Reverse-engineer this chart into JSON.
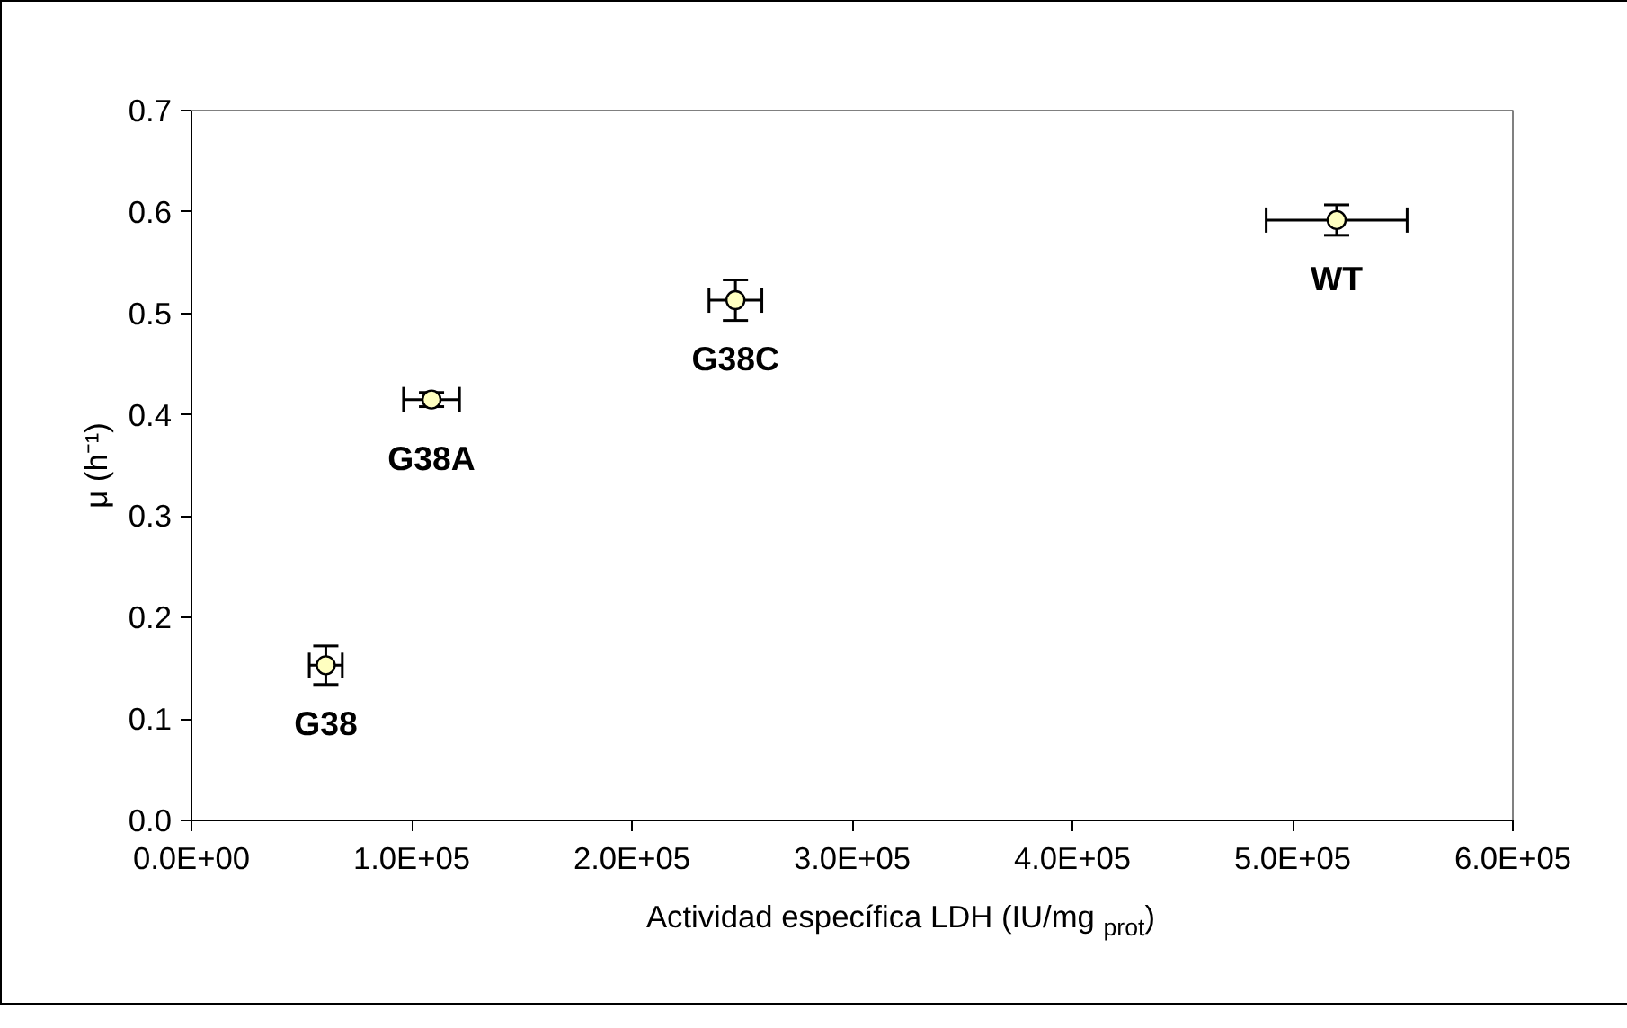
{
  "chart_data": {
    "type": "scatter",
    "xlabel": "Actividad específica LDH (IU/mg $_{prot}$)",
    "ylabel": "μ (h⁻¹)",
    "x": [
      61000,
      109000,
      247000,
      520000
    ],
    "series": [
      {
        "color": "#ffffc0",
        "values": [
          0.153,
          0.415,
          0.513,
          0.592
        ],
        "errors": [
          0.019,
          0.007,
          0.02,
          0.015
        ],
        "xerrors": [
          7500,
          12700,
          12000,
          32000
        ]
      }
    ],
    "annotations": [
      {
        "text": "G38",
        "x": 61000,
        "y": 0.153
      },
      {
        "text": "G38A",
        "x": 109000,
        "y": 0.415
      },
      {
        "text": "G38C",
        "x": 247000,
        "y": 0.513
      },
      {
        "text": "WT",
        "x": 520000,
        "y": 0.592
      }
    ],
    "xlim": [
      0,
      600000
    ],
    "ylim": [
      0,
      0.7
    ],
    "xticks": [
      {
        "value": 0,
        "label": "0.0E+00"
      },
      {
        "value": 100000,
        "label": "1.0E+05"
      },
      {
        "value": 200000,
        "label": "2.0E+05"
      },
      {
        "value": 300000,
        "label": "3.0E+05"
      },
      {
        "value": 400000,
        "label": "4.0E+05"
      },
      {
        "value": 500000,
        "label": "5.0E+05"
      },
      {
        "value": 600000,
        "label": "6.0E+05"
      }
    ],
    "yticks": [
      {
        "value": 0,
        "label": "0.0"
      },
      {
        "value": 0.1,
        "label": "0.1"
      },
      {
        "value": 0.2,
        "label": "0.2"
      },
      {
        "value": 0.3,
        "label": "0.3"
      },
      {
        "value": 0.4,
        "label": "0.4"
      },
      {
        "value": 0.5,
        "label": "0.5"
      },
      {
        "value": 0.6,
        "label": "0.6"
      },
      {
        "value": 0.7,
        "label": "0.7"
      }
    ],
    "marker": "circle",
    "grid": false
  }
}
